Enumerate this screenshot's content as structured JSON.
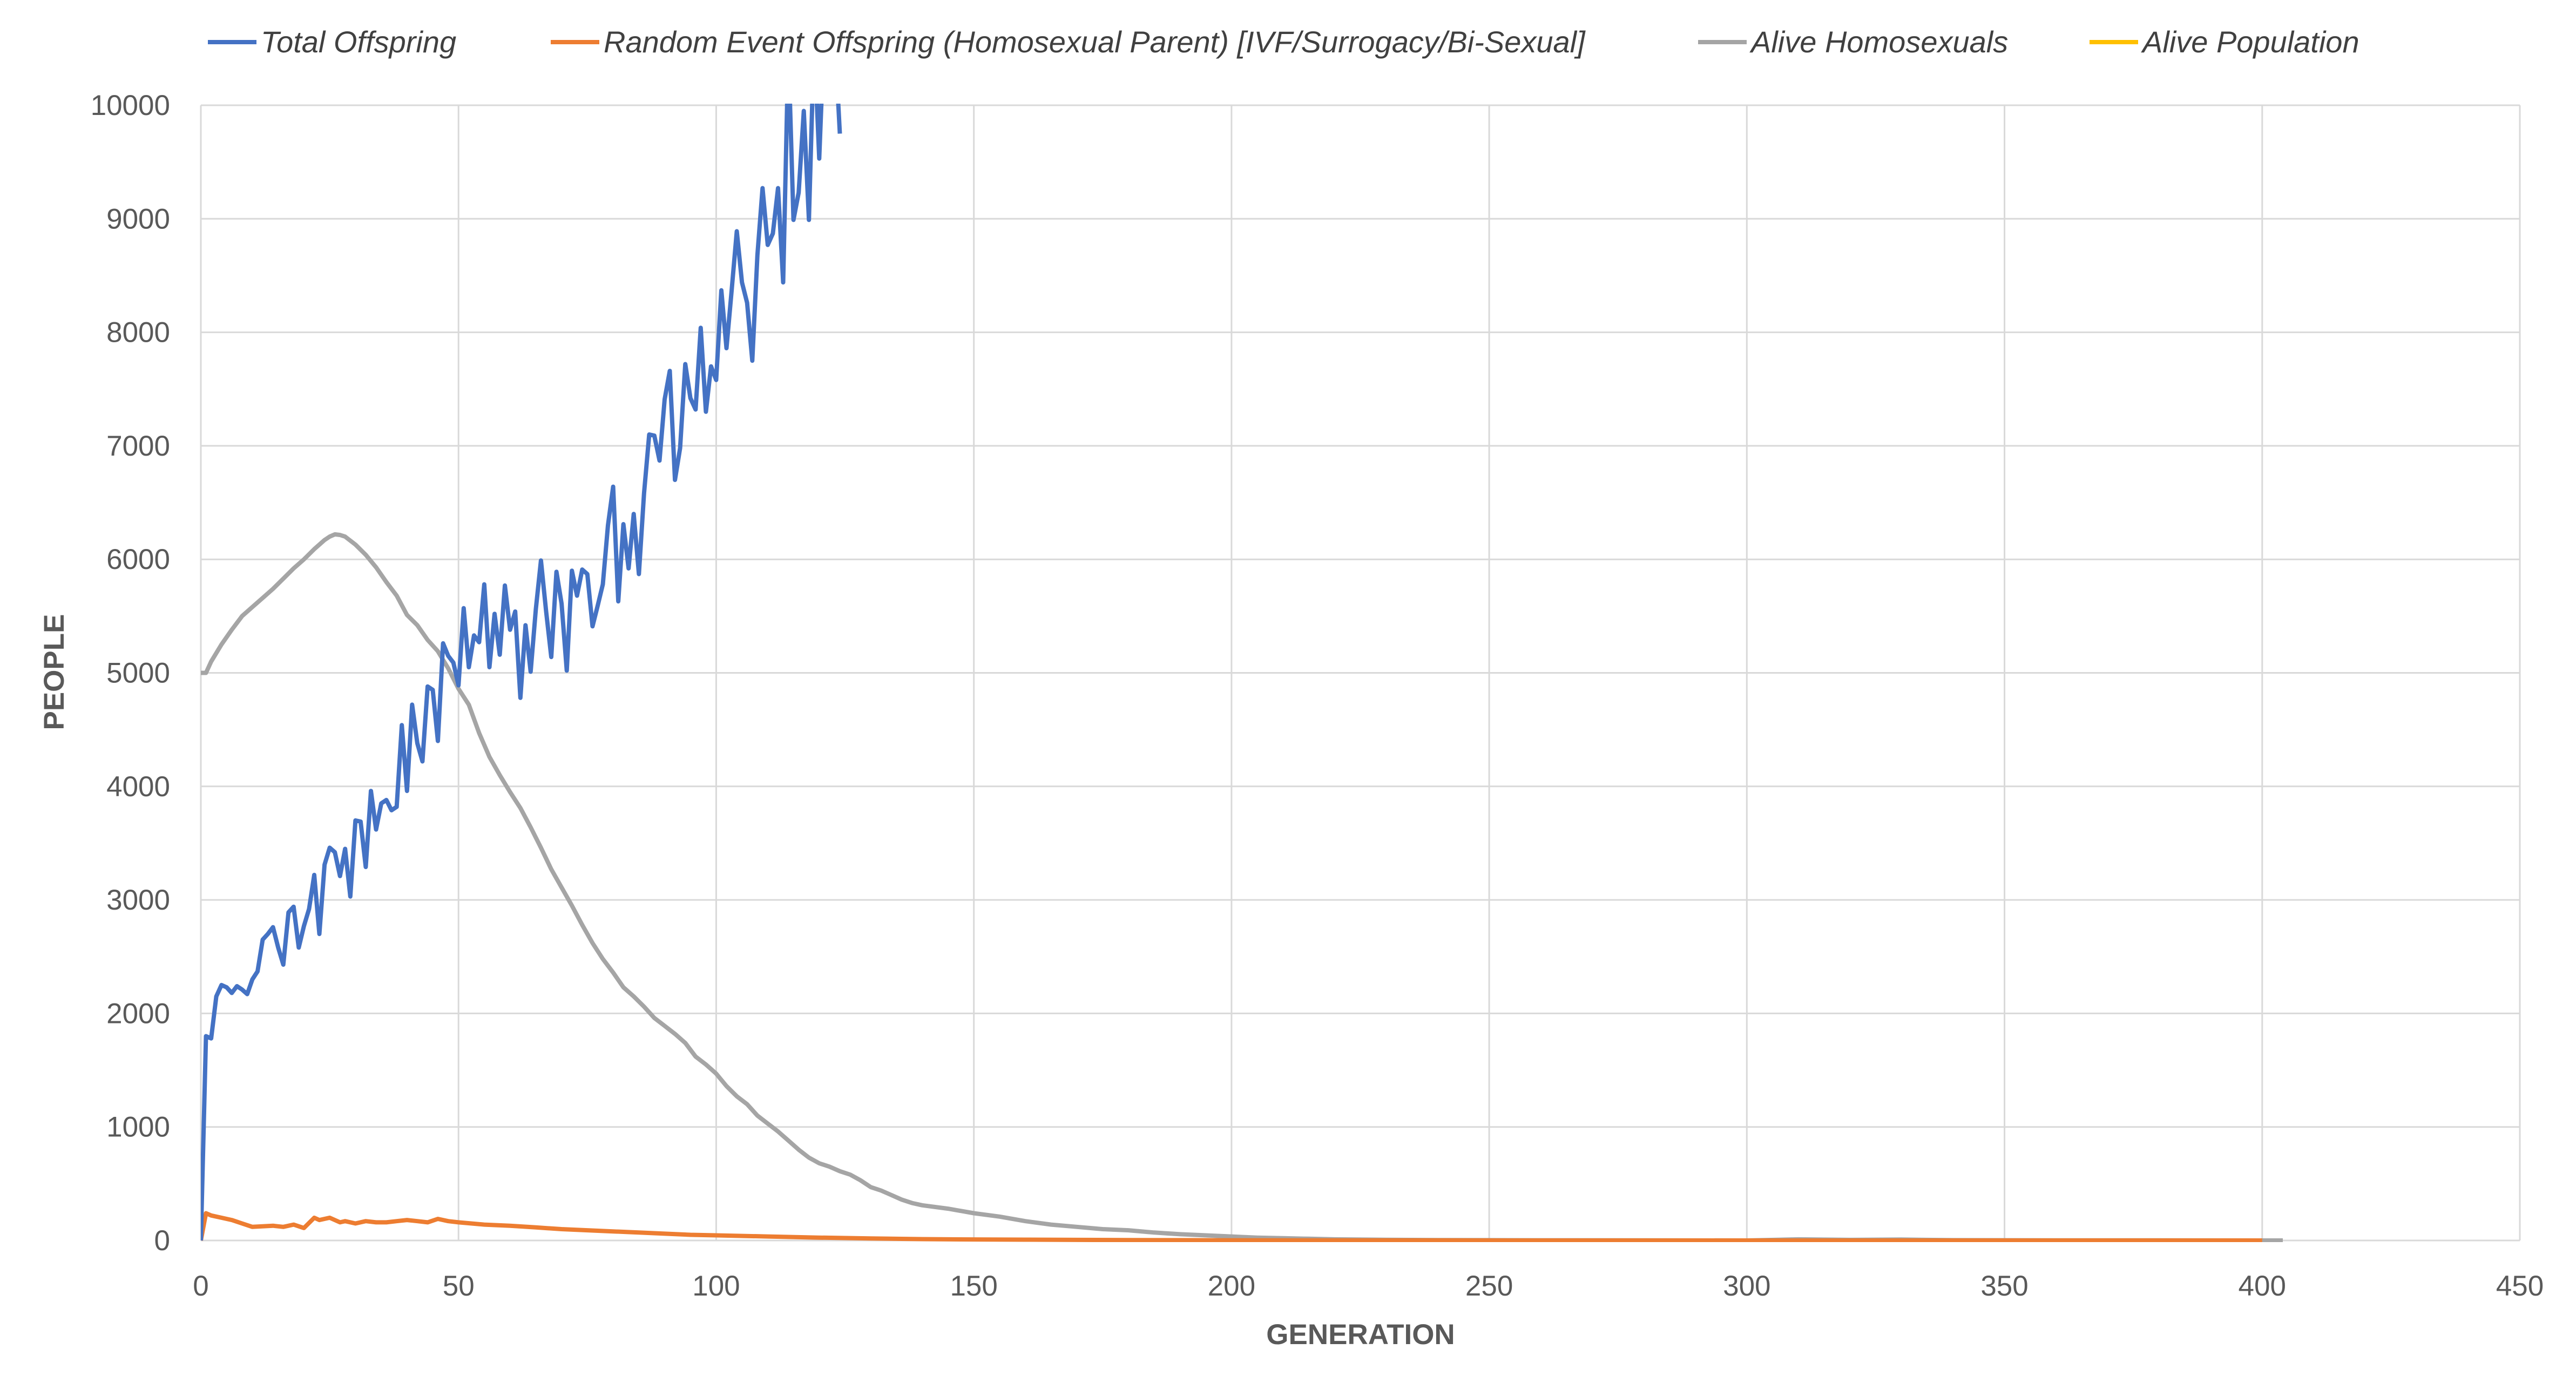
{
  "chart_data": {
    "type": "line",
    "title": "",
    "xlabel": "GENERATION",
    "ylabel": "PEOPLE",
    "xlim": [
      0,
      450
    ],
    "ylim": [
      0,
      10000
    ],
    "x_ticks": [
      "0",
      "50",
      "100",
      "150",
      "200",
      "250",
      "300",
      "350",
      "400",
      "450"
    ],
    "y_ticks": [
      "0",
      "1000",
      "2000",
      "3000",
      "4000",
      "5000",
      "6000",
      "7000",
      "8000",
      "9000",
      "10000"
    ],
    "grid": true,
    "legend_position": "top",
    "series": [
      {
        "name": "Total Offspring",
        "color": "#4472C4",
        "x": [
          0,
          1,
          2,
          3,
          4,
          5,
          6,
          7,
          8,
          9,
          10,
          11,
          12,
          13,
          14,
          15,
          16,
          17,
          18,
          19,
          20,
          21,
          22,
          23,
          24,
          25,
          26,
          27,
          28,
          29,
          30,
          31,
          32,
          33,
          34,
          35,
          36,
          37,
          38,
          39,
          40,
          41,
          42,
          43,
          44,
          45,
          46,
          47,
          48,
          49,
          50,
          51,
          52,
          53,
          54,
          55,
          56,
          57,
          58,
          59,
          60,
          61,
          62,
          63,
          64,
          65,
          66,
          67,
          68,
          69,
          70,
          71,
          72,
          73,
          74,
          75,
          76,
          77,
          78,
          79,
          80,
          81,
          82,
          83,
          84,
          85,
          86,
          87,
          88,
          89,
          90,
          91,
          92,
          93,
          94,
          95,
          96,
          97,
          98,
          99,
          100,
          101,
          102,
          103,
          104,
          105,
          106,
          107,
          108,
          109,
          110,
          111,
          112,
          113,
          114,
          115,
          116,
          117,
          118,
          119,
          120,
          121,
          122,
          123,
          124
        ],
        "y": [
          0,
          1800,
          1780,
          2150,
          2250,
          2230,
          2180,
          2240,
          2210,
          2170,
          2300,
          2370,
          2650,
          2700,
          2760,
          2580,
          2430,
          2890,
          2940,
          2580,
          2770,
          2920,
          3220,
          2700,
          3310,
          3460,
          3420,
          3210,
          3450,
          3030,
          3700,
          3690,
          3290,
          3960,
          3620,
          3850,
          3880,
          3790,
          3820,
          4540,
          3960,
          4720,
          4380,
          4220,
          4880,
          4850,
          4400,
          5260,
          5150,
          5090,
          4890,
          5570,
          5050,
          5330,
          5270,
          5780,
          5050,
          5520,
          5160,
          5770,
          5380,
          5540,
          4780,
          5420,
          5010,
          5560,
          5990,
          5540,
          5140,
          5890,
          5610,
          5020,
          5900,
          5680,
          5910,
          5870,
          5410,
          5590,
          5780,
          6300,
          6640,
          5630,
          6310,
          5920,
          6400,
          5870,
          6580,
          7100,
          7090,
          6870,
          7410,
          7660,
          6700,
          6980,
          7720,
          7420,
          7320,
          8040,
          7300,
          7700,
          7580,
          8370,
          7860,
          8370,
          8890,
          8440,
          8260,
          7750,
          8680,
          9270,
          8770,
          8870,
          9270,
          8440,
          10500,
          8990,
          9230,
          9950,
          8990,
          10600,
          9530,
          10700,
          10500,
          10600,
          9750
        ]
      },
      {
        "name": "Random Event Offspring (Homosexual Parent) [IVF/Surrogacy/Bi-Sexual]",
        "color": "#ED7D31",
        "x": [
          0,
          1,
          2,
          4,
          6,
          8,
          10,
          12,
          14,
          16,
          18,
          20,
          22,
          23,
          25,
          27,
          28,
          30,
          32,
          34,
          36,
          38,
          40,
          42,
          44,
          46,
          48,
          50,
          55,
          60,
          65,
          70,
          75,
          80,
          85,
          90,
          95,
          100,
          110,
          120,
          130,
          140,
          150,
          160,
          170,
          180,
          190,
          200,
          220,
          240,
          260,
          300,
          350,
          400
        ],
        "y": [
          0,
          240,
          220,
          200,
          180,
          150,
          120,
          125,
          130,
          120,
          140,
          110,
          200,
          180,
          200,
          160,
          170,
          150,
          170,
          160,
          160,
          170,
          180,
          170,
          160,
          190,
          170,
          160,
          140,
          130,
          115,
          100,
          90,
          80,
          70,
          60,
          50,
          45,
          35,
          25,
          18,
          12,
          9,
          7,
          5,
          4,
          3,
          2,
          1,
          1,
          0,
          0,
          0,
          0
        ]
      },
      {
        "name": "Alive Homosexuals",
        "color": "#A5A5A5",
        "x": [
          0,
          1,
          2,
          4,
          6,
          8,
          10,
          12,
          14,
          16,
          18,
          20,
          22,
          24,
          25,
          26,
          27,
          28,
          30,
          32,
          34,
          36,
          38,
          40,
          42,
          44,
          46,
          48,
          50,
          52,
          54,
          56,
          58,
          60,
          62,
          64,
          66,
          68,
          70,
          72,
          74,
          76,
          78,
          80,
          82,
          84,
          86,
          88,
          90,
          92,
          94,
          96,
          98,
          100,
          102,
          104,
          106,
          108,
          110,
          112,
          114,
          116,
          118,
          120,
          122,
          124,
          126,
          128,
          130,
          132,
          134,
          136,
          138,
          140,
          145,
          150,
          155,
          160,
          165,
          170,
          175,
          180,
          185,
          190,
          195,
          200,
          205,
          210,
          215,
          220,
          230,
          240,
          250,
          260,
          280,
          300,
          310,
          320,
          330,
          340,
          360,
          380,
          404
        ],
        "y": [
          5000,
          5000,
          5100,
          5250,
          5380,
          5500,
          5580,
          5660,
          5740,
          5830,
          5920,
          6000,
          6090,
          6170,
          6200,
          6220,
          6215,
          6200,
          6130,
          6040,
          5930,
          5800,
          5680,
          5510,
          5420,
          5290,
          5190,
          5040,
          4860,
          4720,
          4470,
          4260,
          4100,
          3950,
          3810,
          3640,
          3460,
          3270,
          3110,
          2950,
          2780,
          2620,
          2480,
          2360,
          2230,
          2150,
          2060,
          1960,
          1890,
          1820,
          1740,
          1620,
          1550,
          1470,
          1360,
          1270,
          1200,
          1100,
          1030,
          960,
          880,
          800,
          730,
          680,
          650,
          610,
          580,
          530,
          470,
          440,
          400,
          360,
          330,
          310,
          280,
          240,
          210,
          170,
          140,
          120,
          100,
          90,
          70,
          55,
          45,
          35,
          25,
          20,
          15,
          10,
          6,
          4,
          3,
          2,
          1,
          0,
          10,
          5,
          8,
          3,
          1,
          1,
          0
        ]
      },
      {
        "name": "Alive Population",
        "color": "#FFC000",
        "x": [],
        "y": []
      }
    ]
  }
}
